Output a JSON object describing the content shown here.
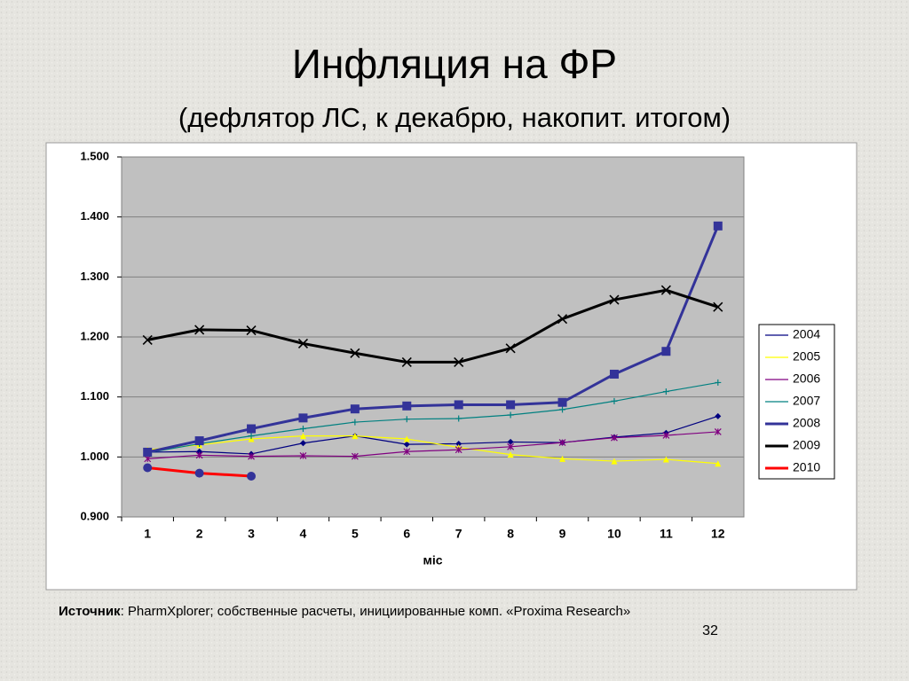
{
  "title": "Инфляция на ФР",
  "subtitle": "(дефлятор ЛС, к декабрю, накопит. итогом)",
  "chart_data": {
    "type": "line",
    "categories": [
      "1",
      "2",
      "3",
      "4",
      "5",
      "6",
      "7",
      "8",
      "9",
      "10",
      "11",
      "12"
    ],
    "xlabel": "міс",
    "ylim": [
      0.9,
      1.5
    ],
    "yticks": [
      {
        "value": 0.9,
        "label": "0.900"
      },
      {
        "value": 1.0,
        "label": "1.000"
      },
      {
        "value": 1.1,
        "label": "1.100"
      },
      {
        "value": 1.2,
        "label": "1.200"
      },
      {
        "value": 1.3,
        "label": "1.300"
      },
      {
        "value": 1.4,
        "label": "1.400"
      },
      {
        "value": 1.5,
        "label": "1.500"
      }
    ],
    "grid": true,
    "legend": "right",
    "series": [
      {
        "name": "2004",
        "color": "#000080",
        "marker": "diamond",
        "values": [
          1.008,
          1.009,
          1.005,
          1.023,
          1.035,
          1.021,
          1.022,
          1.025,
          1.024,
          1.033,
          1.04,
          1.068
        ]
      },
      {
        "name": "2005",
        "color": "#ffff00",
        "marker": "triangle",
        "values": [
          1.012,
          1.02,
          1.03,
          1.035,
          1.035,
          1.03,
          1.016,
          1.004,
          0.997,
          0.993,
          0.996,
          0.989
        ]
      },
      {
        "name": "2006",
        "color": "#800080",
        "marker": "star",
        "values": [
          0.997,
          1.003,
          1.001,
          1.002,
          1.001,
          1.009,
          1.012,
          1.017,
          1.024,
          1.032,
          1.036,
          1.042
        ]
      },
      {
        "name": "2007",
        "color": "#008080",
        "marker": "plus",
        "values": [
          1.007,
          1.022,
          1.035,
          1.047,
          1.058,
          1.063,
          1.064,
          1.07,
          1.079,
          1.093,
          1.109,
          1.124
        ]
      },
      {
        "name": "2008",
        "color": "#333399",
        "marker": "square",
        "values": [
          1.008,
          1.027,
          1.047,
          1.065,
          1.08,
          1.085,
          1.087,
          1.087,
          1.091,
          1.138,
          1.176,
          1.385
        ]
      },
      {
        "name": "2009",
        "color": "#000000",
        "marker": "x",
        "values": [
          1.195,
          1.212,
          1.211,
          1.189,
          1.173,
          1.158,
          1.158,
          1.181,
          1.23,
          1.262,
          1.278,
          1.25
        ]
      },
      {
        "name": "2010",
        "color": "#ff0000",
        "marker": "circle",
        "marker_color": "#333399",
        "values": [
          0.982,
          0.973,
          0.968,
          null,
          null,
          null,
          null,
          null,
          null,
          null,
          null,
          null
        ]
      }
    ]
  },
  "source": {
    "label": "Источник",
    "text": ": PharmXplorer; собственные расчеты, инициированные комп. «Proxima Research»"
  },
  "page_number": "32"
}
